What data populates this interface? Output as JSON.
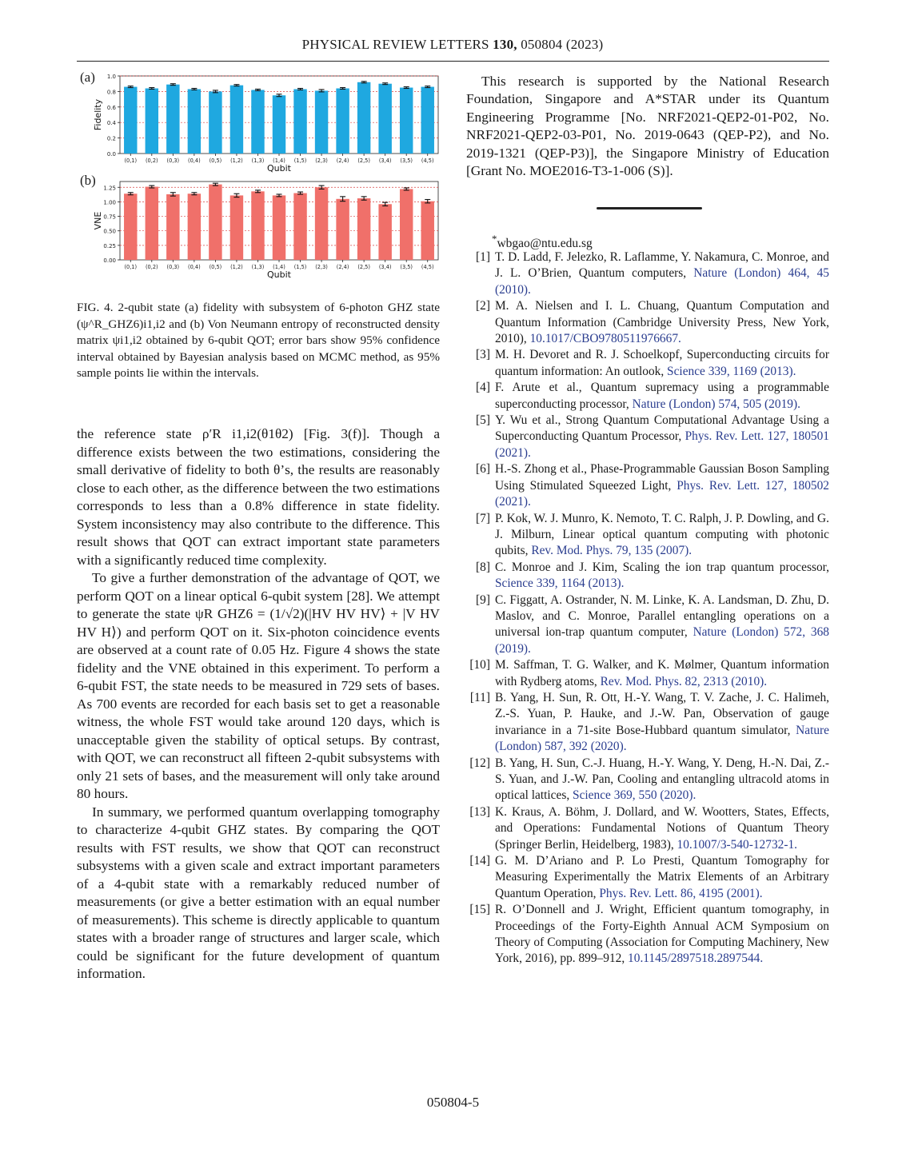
{
  "header": {
    "journal": "PHYSICAL REVIEW LETTERS",
    "volume": "130,",
    "article": "050804 (2023)"
  },
  "figure": {
    "panel_a_label": "(a)",
    "panel_b_label": "(b)",
    "caption": "FIG. 4.  2-qubit state (a) fidelity with subsystem of 6-photon GHZ state (ψ^R_GHZ6)i1,i2 and (b) Von Neumann entropy of reconstructed density matrix ψi1,i2 obtained by 6-qubit QOT; error bars show 95% confidence interval obtained by Bayesian analysis based on MCMC method, as 95% sample points lie within the intervals."
  },
  "chart_data": [
    {
      "type": "bar",
      "panel": "(a)",
      "xlabel": "Qubit",
      "ylabel": "Fidelity",
      "ylim": [
        0,
        1.0
      ],
      "yticks": [
        "0.0",
        "0.2",
        "0.4",
        "0.6",
        "0.8",
        "1.0"
      ],
      "grid": true,
      "color": "#1fa8e0",
      "categories": [
        "(0,1)",
        "(0,2)",
        "(0,3)",
        "(0,4)",
        "(0,5)",
        "(1,2)",
        "(1,3)",
        "(1,4)",
        "(1,5)",
        "(2,3)",
        "(2,4)",
        "(2,5)",
        "(3,4)",
        "(3,5)",
        "(4,5)"
      ],
      "values": [
        0.86,
        0.84,
        0.89,
        0.83,
        0.8,
        0.88,
        0.82,
        0.75,
        0.83,
        0.81,
        0.84,
        0.92,
        0.9,
        0.85,
        0.86
      ],
      "errors": [
        0.01,
        0.01,
        0.01,
        0.01,
        0.015,
        0.01,
        0.01,
        0.015,
        0.01,
        0.015,
        0.01,
        0.01,
        0.01,
        0.01,
        0.01
      ]
    },
    {
      "type": "bar",
      "panel": "(b)",
      "xlabel": "Qubit",
      "ylabel": "VNE",
      "ylim": [
        0,
        1.35
      ],
      "yticks": [
        "0.00",
        "0.25",
        "0.50",
        "0.75",
        "1.00",
        "1.25"
      ],
      "grid": true,
      "color": "#f0706a",
      "categories": [
        "(0,1)",
        "(0,2)",
        "(0,3)",
        "(0,4)",
        "(0,5)",
        "(1,2)",
        "(1,3)",
        "(1,4)",
        "(1,5)",
        "(2,3)",
        "(2,4)",
        "(2,5)",
        "(3,4)",
        "(3,5)",
        "(4,5)"
      ],
      "values": [
        1.14,
        1.26,
        1.13,
        1.14,
        1.3,
        1.11,
        1.18,
        1.11,
        1.15,
        1.25,
        1.05,
        1.06,
        0.96,
        1.22,
        1.01
      ],
      "errors": [
        0.02,
        0.02,
        0.03,
        0.02,
        0.02,
        0.03,
        0.02,
        0.02,
        0.02,
        0.03,
        0.04,
        0.03,
        0.03,
        0.02,
        0.03
      ]
    }
  ],
  "left_column": {
    "p1": "the reference state ρ′R i1,i2(θ1θ2) [Fig. 3(f)]. Though a difference exists between the two estimations, considering the small derivative of fidelity to both θ’s, the results are reasonably close to each other, as the difference between the two estimations corresponds to less than a 0.8% difference in state fidelity. System inconsistency may also contribute to the difference. This result shows that QOT can extract important state parameters with a significantly reduced time complexity.",
    "p2": "To give a further demonstration of the advantage of QOT, we perform QOT on a linear optical 6-qubit system [28]. We attempt to generate the state ψR GHZ6 = (1/√2)(|HV HV HV⟩ + |V HV HV H⟩) and perform QOT on it. Six-photon coincidence events are observed at a count rate of 0.05 Hz. Figure 4 shows the state fidelity and the VNE obtained in this experiment. To perform a 6-qubit FST, the state needs to be measured in 729 sets of bases. As 700 events are recorded for each basis set to get a reasonable witness, the whole FST would take around 120 days, which is unacceptable given the stability of optical setups. By contrast, with QOT, we can reconstruct all fifteen 2-qubit subsystems with only 21 sets of bases, and the measurement will only take around 80 hours.",
    "p3": "In summary, we performed quantum overlapping tomography to characterize 4-qubit GHZ states. By comparing the QOT results with FST results, we show that QOT can reconstruct subsystems with a given scale and extract important parameters of a 4-qubit state with a remarkably reduced number of measurements (or give a better estimation with an equal number of measurements). This scheme is directly applicable to quantum states with a broader range of structures and larger scale, which could be significant for the future development of quantum information."
  },
  "right_column": {
    "acknowledgment": "This research is supported by the National Research Foundation, Singapore and A*STAR under its Quantum Engineering Programme [No. NRF2021-QEP2-01-P02, No. NRF2021-QEP2-03-P01, No. 2019-0643 (QEP-P2), and No. 2019-1321 (QEP-P3)], the Singapore Ministry of Education [Grant No. MOE2016-T3-1-006 (S)].",
    "email_mark": "*",
    "email": "wbgao@ntu.edu.sg",
    "references": [
      {
        "num": "[1]",
        "text": "T. D. Ladd, F. Jelezko, R. Laflamme, Y. Nakamura, C. Monroe, and J. L. O’Brien, Quantum computers, ",
        "link": "Nature (London) 464, 45 (2010)."
      },
      {
        "num": "[2]",
        "text": "M. A. Nielsen and I. L. Chuang, Quantum Computation and Quantum Information (Cambridge University Press, New York, 2010), ",
        "link": "10.1017/CBO9780511976667."
      },
      {
        "num": "[3]",
        "text": "M. H. Devoret and R. J. Schoelkopf, Superconducting circuits for quantum information: An outlook, ",
        "link": "Science 339, 1169 (2013)."
      },
      {
        "num": "[4]",
        "text": "F. Arute et al., Quantum supremacy using a programmable superconducting processor, ",
        "link": "Nature (London) 574, 505 (2019)."
      },
      {
        "num": "[5]",
        "text": "Y. Wu et al., Strong Quantum Computational Advantage Using a Superconducting Quantum Processor, ",
        "link": "Phys. Rev. Lett. 127, 180501 (2021)."
      },
      {
        "num": "[6]",
        "text": "H.-S. Zhong et al., Phase-Programmable Gaussian Boson Sampling Using Stimulated Squeezed Light, ",
        "link": "Phys. Rev. Lett. 127, 180502 (2021)."
      },
      {
        "num": "[7]",
        "text": "P. Kok, W. J. Munro, K. Nemoto, T. C. Ralph, J. P. Dowling, and G. J. Milburn, Linear optical quantum computing with photonic qubits, ",
        "link": "Rev. Mod. Phys. 79, 135 (2007)."
      },
      {
        "num": "[8]",
        "text": "C. Monroe and J. Kim, Scaling the ion trap quantum processor, ",
        "link": "Science 339, 1164 (2013)."
      },
      {
        "num": "[9]",
        "text": "C. Figgatt, A. Ostrander, N. M. Linke, K. A. Landsman, D. Zhu, D. Maslov, and C. Monroe, Parallel entangling operations on a universal ion-trap quantum computer, ",
        "link": "Nature (London) 572, 368 (2019)."
      },
      {
        "num": "[10]",
        "text": "M. Saffman, T. G. Walker, and K. Mølmer, Quantum information with Rydberg atoms, ",
        "link": "Rev. Mod. Phys. 82, 2313 (2010)."
      },
      {
        "num": "[11]",
        "text": "B. Yang, H. Sun, R. Ott, H.-Y. Wang, T. V. Zache, J. C. Halimeh, Z.-S. Yuan, P. Hauke, and J.-W. Pan, Observation of gauge invariance in a 71-site Bose-Hubbard quantum simulator, ",
        "link": "Nature (London) 587, 392 (2020)."
      },
      {
        "num": "[12]",
        "text": "B. Yang, H. Sun, C.-J. Huang, H.-Y. Wang, Y. Deng, H.-N. Dai, Z.-S. Yuan, and J.-W. Pan, Cooling and entangling ultracold atoms in optical lattices, ",
        "link": "Science 369, 550 (2020)."
      },
      {
        "num": "[13]",
        "text": "K. Kraus, A. Böhm, J. Dollard, and W. Wootters, States, Effects, and Operations: Fundamental Notions of Quantum Theory (Springer Berlin, Heidelberg, 1983), ",
        "link": "10.1007/3-540-12732-1."
      },
      {
        "num": "[14]",
        "text": "G. M. D’Ariano and P. Lo Presti, Quantum Tomography for Measuring Experimentally the Matrix Elements of an Arbitrary Quantum Operation, ",
        "link": "Phys. Rev. Lett. 86, 4195 (2001)."
      },
      {
        "num": "[15]",
        "text": "R. O’Donnell and J. Wright, Efficient quantum tomography, in Proceedings of the Forty-Eighth Annual ACM Symposium on Theory of Computing (Association for Computing Machinery, New York, 2016), pp. 899–912, ",
        "link": "10.1145/2897518.2897544."
      }
    ]
  },
  "footer": {
    "page": "050804-5"
  }
}
